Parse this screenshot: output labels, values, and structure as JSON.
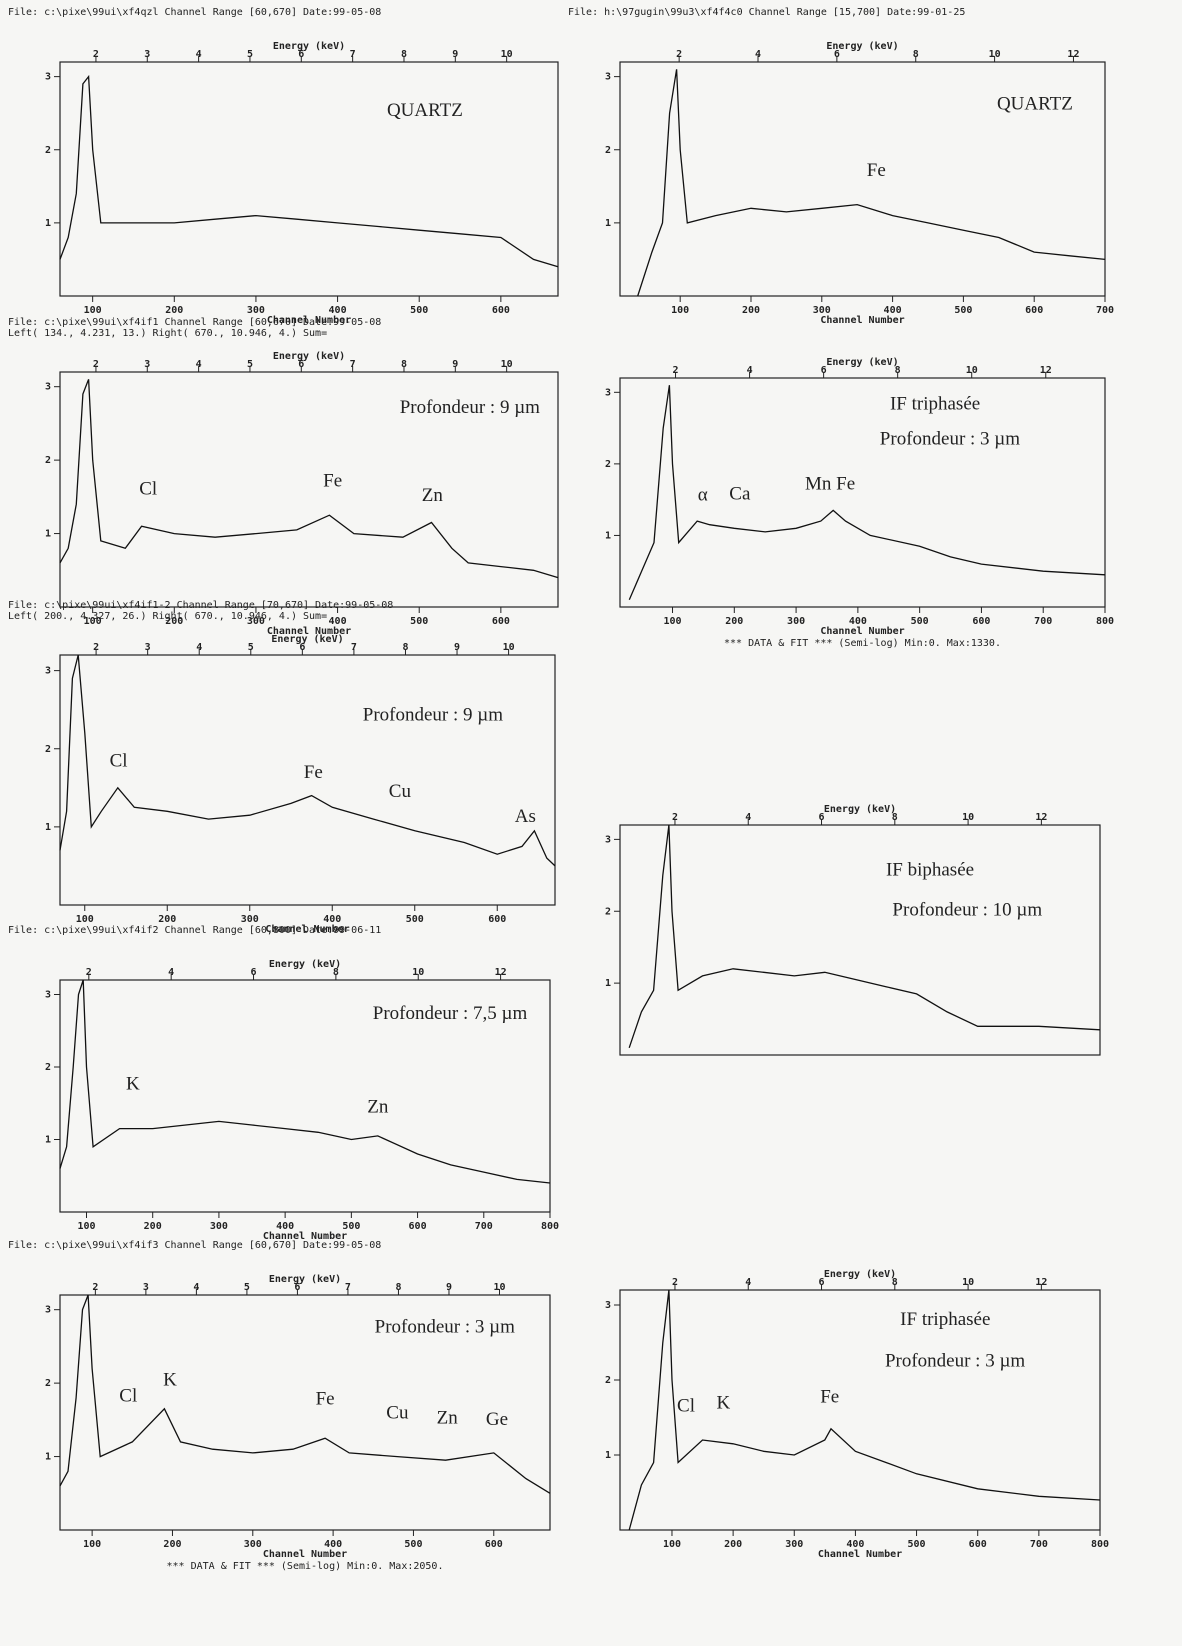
{
  "chart_data": [
    {
      "type": "line",
      "header": [
        "File: c:\\pixe\\99ui\\xf4qzl   Channel Range [60,670]   Date:99-05-08"
      ],
      "x2label": "Energy (keV)",
      "xlabel": "Channel Number",
      "xlim": [
        60,
        670
      ],
      "xticks": [
        100,
        200,
        300,
        400,
        500,
        600
      ],
      "x2lim": [
        1.3,
        11.0
      ],
      "x2ticks": [
        2,
        3,
        4,
        5,
        6,
        7,
        8,
        9,
        10
      ],
      "ylim": [
        0,
        3.2
      ],
      "yticks": [
        1,
        2,
        3
      ],
      "color": "#111",
      "x": [
        60,
        70,
        80,
        88,
        95,
        100,
        110,
        150,
        200,
        250,
        300,
        350,
        400,
        450,
        500,
        550,
        600,
        640,
        670
      ],
      "values": [
        0.5,
        0.8,
        1.4,
        2.9,
        3.0,
        2.0,
        1.0,
        1.0,
        1.0,
        1.05,
        1.1,
        1.05,
        1.0,
        0.95,
        0.9,
        0.85,
        0.8,
        0.5,
        0.4
      ],
      "annotations": [
        {
          "text": "QUARTZ",
          "x": 507,
          "y": 2.52
        }
      ]
    },
    {
      "type": "line",
      "header": [
        "File: h:\\97gugin\\99u3\\xf4f4c0   Channel Range [15,700]   Date:99-01-25"
      ],
      "x2label": "Energy (keV)",
      "xlabel": "Channel Number",
      "xlim": [
        15,
        700
      ],
      "xticks": [
        100,
        200,
        300,
        400,
        500,
        600,
        700
      ],
      "x2lim": [
        0.5,
        12.8
      ],
      "x2ticks": [
        2,
        4,
        6,
        8,
        10,
        12
      ],
      "ylim": [
        0,
        3.2
      ],
      "yticks": [
        1,
        2,
        3
      ],
      "color": "#111",
      "x": [
        40,
        60,
        75,
        85,
        95,
        100,
        110,
        150,
        200,
        250,
        300,
        350,
        400,
        450,
        500,
        550,
        600,
        650,
        700
      ],
      "values": [
        0.0,
        0.6,
        1.0,
        2.5,
        3.1,
        2.0,
        1.0,
        1.1,
        1.2,
        1.15,
        1.2,
        1.25,
        1.1,
        1.0,
        0.9,
        0.8,
        0.6,
        0.55,
        0.5
      ],
      "annotations": [
        {
          "text": "QUARTZ",
          "x": 601,
          "y": 2.61
        },
        {
          "text": "Fe",
          "x": 377,
          "y": 1.7
        }
      ]
    },
    {
      "type": "line",
      "header": [
        "File: c:\\pixe\\99ui\\xf4if1   Channel Range [60,670]   Date:99-05-08",
        "Left( 134., 4.231, 13.)   Right( 670., 10.946, 4.)  Sum="
      ],
      "x2label": "Energy (keV)",
      "xlabel": "Channel Number",
      "xlim": [
        60,
        670
      ],
      "xticks": [
        100,
        200,
        300,
        400,
        500,
        600
      ],
      "x2lim": [
        1.3,
        11.0
      ],
      "x2ticks": [
        2,
        3,
        4,
        5,
        6,
        7,
        8,
        9,
        10
      ],
      "ylim": [
        0,
        3.2
      ],
      "yticks": [
        1,
        2,
        3
      ],
      "color": "#111",
      "x": [
        60,
        70,
        80,
        88,
        95,
        100,
        110,
        140,
        160,
        200,
        250,
        300,
        350,
        390,
        420,
        480,
        515,
        540,
        560,
        600,
        640,
        670
      ],
      "values": [
        0.6,
        0.8,
        1.4,
        2.9,
        3.1,
        2.0,
        0.9,
        0.8,
        1.1,
        1.0,
        0.95,
        1.0,
        1.05,
        1.25,
        1.0,
        0.95,
        1.15,
        0.8,
        0.6,
        0.55,
        0.5,
        0.4
      ],
      "annotations": [
        {
          "text": "Profondeur : 9 µm",
          "x": 562,
          "y": 2.7
        },
        {
          "text": "Cl",
          "x": 168,
          "y": 1.59
        },
        {
          "text": "Fe",
          "x": 394,
          "y": 1.7
        },
        {
          "text": "Zn",
          "x": 516,
          "y": 1.5
        }
      ]
    },
    {
      "type": "line",
      "x2label": "Energy (keV)",
      "xlabel": "Channel Number",
      "footer": "*** DATA & FIT ***  (Semi-log)   Min:0.   Max:1330.",
      "xlim": [
        15,
        800
      ],
      "xticks": [
        100,
        200,
        300,
        400,
        500,
        600,
        700,
        800
      ],
      "x2lim": [
        0.5,
        13.6
      ],
      "x2ticks": [
        2,
        4,
        6,
        8,
        10,
        12
      ],
      "ylim": [
        0,
        3.2
      ],
      "yticks": [
        1,
        2,
        3
      ],
      "color": "#111",
      "x": [
        30,
        50,
        70,
        85,
        95,
        100,
        110,
        140,
        160,
        200,
        250,
        300,
        340,
        360,
        380,
        420,
        500,
        550,
        600,
        700,
        800
      ],
      "values": [
        0.1,
        0.5,
        0.9,
        2.5,
        3.1,
        2.0,
        0.9,
        1.2,
        1.15,
        1.1,
        1.05,
        1.1,
        1.2,
        1.35,
        1.2,
        1.0,
        0.85,
        0.7,
        0.6,
        0.5,
        0.45
      ],
      "annotations": [
        {
          "text": "IF triphasée",
          "x": 525,
          "y": 2.82
        },
        {
          "text": "Profondeur : 3 µm",
          "x": 549,
          "y": 2.33
        },
        {
          "text": "α",
          "x": 149,
          "y": 1.55
        },
        {
          "text": "Ca",
          "x": 209,
          "y": 1.56
        },
        {
          "text": "Mn Fe",
          "x": 355,
          "y": 1.7
        }
      ]
    },
    {
      "type": "line",
      "header": [
        "File: c:\\pixe\\99ui\\xf4if1-2   Channel Range [70,670]   Date:99-05-08",
        "Left( 200., 4.327, 26.)   Right( 670., 10.946, 4.)  Sum="
      ],
      "x2label": "Energy (keV)",
      "xlabel": "Channel Number",
      "xlim": [
        70,
        670
      ],
      "xticks": [
        100,
        200,
        300,
        400,
        500,
        600
      ],
      "x2lim": [
        1.3,
        10.9
      ],
      "x2ticks": [
        2,
        3,
        4,
        5,
        6,
        7,
        8,
        9,
        10
      ],
      "ylim": [
        0,
        3.2
      ],
      "yticks": [
        1,
        2,
        3
      ],
      "color": "#111",
      "x": [
        70,
        78,
        85,
        92,
        100,
        108,
        120,
        140,
        160,
        200,
        250,
        300,
        350,
        375,
        400,
        450,
        500,
        560,
        600,
        630,
        645,
        660,
        670
      ],
      "values": [
        0.7,
        1.2,
        2.9,
        3.2,
        2.2,
        1.0,
        1.2,
        1.5,
        1.25,
        1.2,
        1.1,
        1.15,
        1.3,
        1.4,
        1.25,
        1.1,
        0.95,
        0.8,
        0.65,
        0.75,
        0.95,
        0.6,
        0.5
      ],
      "annotations": [
        {
          "text": "Profondeur : 9 µm",
          "x": 522,
          "y": 2.42
        },
        {
          "text": "Cl",
          "x": 141,
          "y": 1.83
        },
        {
          "text": "Fe",
          "x": 377,
          "y": 1.68
        },
        {
          "text": "Cu",
          "x": 482,
          "y": 1.44
        },
        {
          "text": "As",
          "x": 634,
          "y": 1.12
        }
      ]
    },
    {
      "type": "line",
      "x2label": "Energy (keV)",
      "xlim": [
        15,
        800
      ],
      "x2lim": [
        0.5,
        13.6
      ],
      "x2ticks": [
        2,
        4,
        6,
        8,
        10,
        12
      ],
      "ylim": [
        0,
        3.2
      ],
      "yticks": [
        1,
        2,
        3
      ],
      "color": "#111",
      "x": [
        30,
        50,
        70,
        85,
        95,
        100,
        110,
        150,
        200,
        250,
        300,
        350,
        400,
        450,
        500,
        550,
        600,
        700,
        800
      ],
      "values": [
        0.1,
        0.6,
        0.9,
        2.5,
        3.2,
        2.0,
        0.9,
        1.1,
        1.2,
        1.15,
        1.1,
        1.15,
        1.05,
        0.95,
        0.85,
        0.6,
        0.4,
        0.4,
        0.35
      ],
      "annotations": [
        {
          "text": "IF biphasée",
          "x": 522,
          "y": 2.56
        },
        {
          "text": "Profondeur : 10 µm",
          "x": 583,
          "y": 2.0
        }
      ]
    },
    {
      "type": "line",
      "header": [
        "File: c:\\pixe\\99ui\\xf4if2   Channel Range [60,800]   Date:99-06-11"
      ],
      "x2label": "Energy (keV)",
      "xlabel": "Channel Number",
      "xlim": [
        60,
        800
      ],
      "xticks": [
        100,
        200,
        300,
        400,
        500,
        600,
        700,
        800
      ],
      "x2lim": [
        1.3,
        13.2
      ],
      "x2ticks": [
        2,
        4,
        6,
        8,
        10,
        12
      ],
      "ylim": [
        0,
        3.2
      ],
      "yticks": [
        1,
        2,
        3
      ],
      "color": "#111",
      "x": [
        60,
        70,
        80,
        88,
        95,
        100,
        110,
        150,
        200,
        250,
        300,
        350,
        400,
        450,
        500,
        540,
        600,
        650,
        700,
        750,
        800
      ],
      "values": [
        0.6,
        0.9,
        2.0,
        3.0,
        3.2,
        2.0,
        0.9,
        1.15,
        1.15,
        1.2,
        1.25,
        1.2,
        1.15,
        1.1,
        1.0,
        1.05,
        0.8,
        0.65,
        0.55,
        0.45,
        0.4
      ],
      "annotations": [
        {
          "text": "Profondeur : 7,5 µm",
          "x": 649,
          "y": 2.72
        },
        {
          "text": "K",
          "x": 170,
          "y": 1.75
        },
        {
          "text": "Zn",
          "x": 540,
          "y": 1.43
        }
      ]
    },
    {
      "type": "line",
      "header": [
        "File: c:\\pixe\\99ui\\xf4if3   Channel Range [60,670]   Date:99-05-08"
      ],
      "x2label": "Energy (keV)",
      "xlabel": "Channel Number",
      "footer": "*** DATA & FIT ***  (Semi-log)   Min:0.   Max:2050.",
      "xlim": [
        60,
        670
      ],
      "xticks": [
        100,
        200,
        300,
        400,
        500,
        600
      ],
      "x2lim": [
        1.3,
        11.0
      ],
      "x2ticks": [
        2,
        3,
        4,
        5,
        6,
        7,
        8,
        9,
        10
      ],
      "ylim": [
        0,
        3.2
      ],
      "yticks": [
        1,
        2,
        3
      ],
      "color": "#111",
      "x": [
        60,
        70,
        80,
        88,
        95,
        100,
        110,
        150,
        190,
        210,
        250,
        300,
        350,
        390,
        420,
        480,
        540,
        600,
        640,
        670
      ],
      "values": [
        0.6,
        0.8,
        1.8,
        3.0,
        3.2,
        2.2,
        1.0,
        1.2,
        1.65,
        1.2,
        1.1,
        1.05,
        1.1,
        1.25,
        1.05,
        1.0,
        0.95,
        1.05,
        0.7,
        0.5
      ],
      "annotations": [
        {
          "text": "Profondeur : 3 µm",
          "x": 539,
          "y": 2.75
        },
        {
          "text": "Cl",
          "x": 145,
          "y": 1.81
        },
        {
          "text": "K",
          "x": 197,
          "y": 2.03
        },
        {
          "text": "Fe",
          "x": 390,
          "y": 1.77
        },
        {
          "text": "Cu",
          "x": 480,
          "y": 1.58
        },
        {
          "text": "Zn",
          "x": 542,
          "y": 1.51
        },
        {
          "text": "Ge",
          "x": 604,
          "y": 1.49
        }
      ]
    },
    {
      "type": "line",
      "x2label": "Energy (keV)",
      "xlabel": "Channel Number",
      "xlim": [
        15,
        800
      ],
      "xticks": [
        100,
        200,
        300,
        400,
        500,
        600,
        700,
        800
      ],
      "x2lim": [
        0.5,
        13.6
      ],
      "x2ticks": [
        2,
        4,
        6,
        8,
        10,
        12
      ],
      "ylim": [
        0,
        3.2
      ],
      "yticks": [
        1,
        2,
        3
      ],
      "color": "#111",
      "x": [
        30,
        50,
        70,
        85,
        95,
        100,
        110,
        150,
        200,
        250,
        300,
        350,
        360,
        400,
        450,
        500,
        600,
        700,
        800
      ],
      "values": [
        0.0,
        0.6,
        0.9,
        2.5,
        3.2,
        2.0,
        0.9,
        1.2,
        1.15,
        1.05,
        1.0,
        1.2,
        1.35,
        1.05,
        0.9,
        0.75,
        0.55,
        0.45,
        0.4
      ],
      "annotations": [
        {
          "text": "IF triphasée",
          "x": 547,
          "y": 2.79
        },
        {
          "text": "Profondeur : 3 µm",
          "x": 563,
          "y": 2.24
        },
        {
          "text": "Cl",
          "x": 123,
          "y": 1.64
        },
        {
          "text": "K",
          "x": 184,
          "y": 1.68
        },
        {
          "text": "Fe",
          "x": 358,
          "y": 1.76
        }
      ]
    }
  ]
}
